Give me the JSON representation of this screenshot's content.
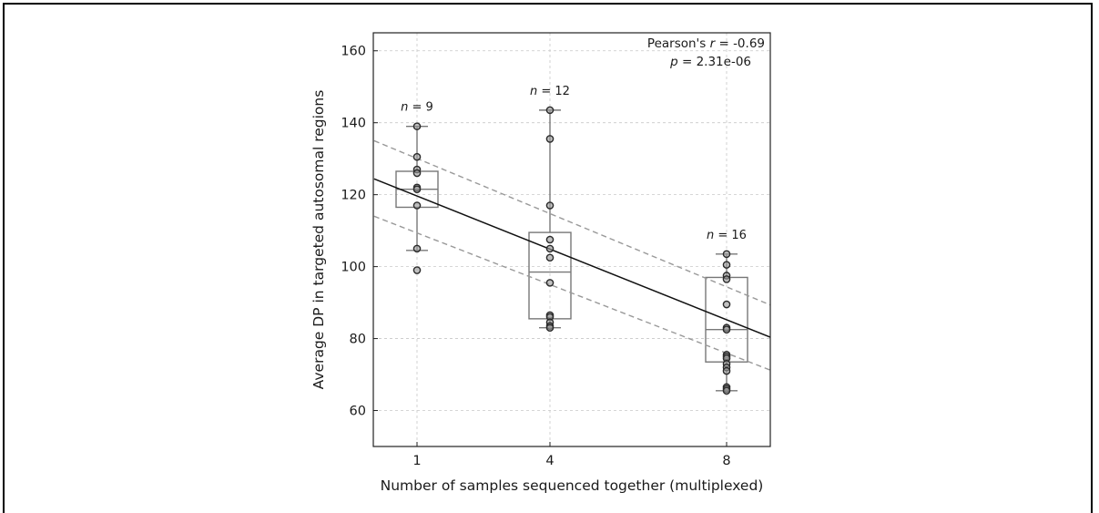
{
  "chart_data": {
    "type": "box",
    "xlabel": "Number of samples sequenced together (multiplexed)",
    "ylabel": "Average DP in targeted autosomal regions",
    "ylim": [
      50,
      165
    ],
    "yticks": [
      60,
      80,
      100,
      120,
      140,
      160
    ],
    "grid": true,
    "categories": [
      "1",
      "4",
      "8"
    ],
    "groups": [
      {
        "x": 1,
        "n_label": "n = 9",
        "box": {
          "q1": 116.5,
          "median": 121.5,
          "q3": 126.5,
          "whisker_low": 104.5,
          "whisker_high": 139
        },
        "points": [
          139,
          130.5,
          127,
          126,
          122,
          121.5,
          117,
          105,
          99
        ]
      },
      {
        "x": 4,
        "n_label": "n = 12",
        "box": {
          "q1": 85.5,
          "median": 98.5,
          "q3": 109.5,
          "whisker_low": 83,
          "whisker_high": 143.5
        },
        "points": [
          143.5,
          135.5,
          117,
          107.5,
          105,
          102.5,
          95.5,
          86.5,
          86,
          84.5,
          83.5,
          83
        ]
      },
      {
        "x": 8,
        "n_label": "n = 16",
        "box": {
          "q1": 73.5,
          "median": 82.5,
          "q3": 97,
          "whisker_low": 65.5,
          "whisker_high": 103.5
        },
        "points": [
          103.5,
          100.5,
          97.5,
          96.5,
          89.5,
          83,
          82.5,
          75.5,
          75,
          74.5,
          73,
          72,
          71,
          66.5,
          66,
          65.5
        ]
      }
    ],
    "regression": {
      "line": [
        [
          0.03,
          124.4
        ],
        [
          9.35,
          78.6
        ]
      ],
      "ci_upper": [
        [
          0.03,
          135
        ],
        [
          9.35,
          87.5
        ]
      ],
      "ci_lower": [
        [
          0.03,
          114
        ],
        [
          9.35,
          69.5
        ]
      ]
    },
    "annotation": {
      "line1": "Pearson's r = -0.69",
      "line1_prefix": "Pearson's ",
      "line1_var": "r",
      "line1_suffix": " = -0.69",
      "line2_var": "p",
      "line2_suffix": " = 2.31e-06"
    }
  }
}
